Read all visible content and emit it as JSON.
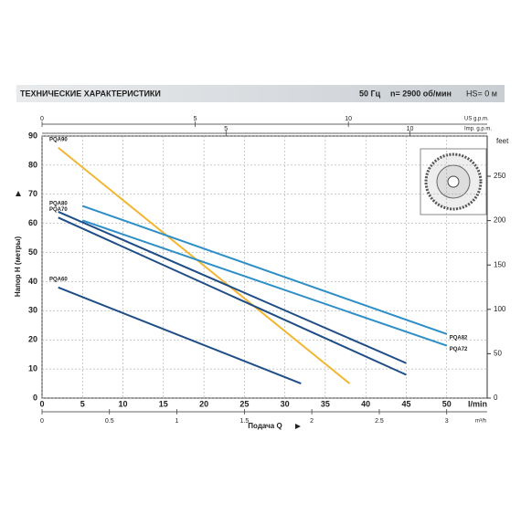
{
  "header": {
    "title": "ТЕХНИЧЕСКИЕ ХАРАКТЕРИСТИКИ",
    "frequency": "50 Гц",
    "speed": "n= 2900 об/мин",
    "suction": "HS= 0 м"
  },
  "chart_data": {
    "type": "line",
    "ylabel": "Напор H (метры)",
    "xlabel": "Подача Q",
    "x_unit": "l/min",
    "y2_unit": "feet",
    "us_gpm_unit": "US g.p.m.",
    "imp_gpm_unit": "Imp. g.p.m.",
    "m3h_unit": "m³/h",
    "xlim": [
      0,
      55
    ],
    "xticks": [
      0,
      5,
      10,
      15,
      20,
      25,
      30,
      35,
      40,
      45,
      50
    ],
    "ylim": [
      0,
      90
    ],
    "yticks": [
      0,
      10,
      20,
      30,
      40,
      50,
      60,
      70,
      80,
      90
    ],
    "y2lim": [
      0,
      295.3
    ],
    "y2ticks": [
      0,
      50,
      100,
      150,
      200,
      250
    ],
    "us_gpm_ticks": [
      {
        "value": 0,
        "label": "0"
      },
      {
        "value": 18.93,
        "label": "5"
      },
      {
        "value": 37.85,
        "label": "10"
      }
    ],
    "imp_gpm_ticks": [
      {
        "value": 22.73,
        "label": "5"
      },
      {
        "value": 45.46,
        "label": "10"
      }
    ],
    "m3h_ticks": [
      {
        "value": 0,
        "label": "0"
      },
      {
        "value": 8.33,
        "label": "0.5"
      },
      {
        "value": 16.67,
        "label": "1"
      },
      {
        "value": 25,
        "label": "1.5"
      },
      {
        "value": 33.33,
        "label": "2"
      },
      {
        "value": 41.67,
        "label": "2.5"
      },
      {
        "value": 50,
        "label": "3"
      }
    ],
    "grid": true,
    "series": [
      {
        "name": "PQA90",
        "color": "#f2b632",
        "x": [
          2,
          38
        ],
        "values": [
          86,
          5
        ]
      },
      {
        "name": "PQA80",
        "color": "#1f4e86",
        "x": [
          2,
          45
        ],
        "values": [
          64,
          12
        ]
      },
      {
        "name": "PQA70",
        "color": "#1f4e86",
        "x": [
          2,
          45
        ],
        "values": [
          62,
          8
        ]
      },
      {
        "name": "PQA60",
        "color": "#1f4e86",
        "x": [
          2,
          32
        ],
        "values": [
          38,
          5
        ]
      },
      {
        "name": "PQA82",
        "color": "#2e8ec8",
        "x": [
          5,
          50
        ],
        "values": [
          66,
          22
        ]
      },
      {
        "name": "PQA72",
        "color": "#2e8ec8",
        "x": [
          5,
          50
        ],
        "values": [
          61,
          18
        ]
      }
    ]
  }
}
